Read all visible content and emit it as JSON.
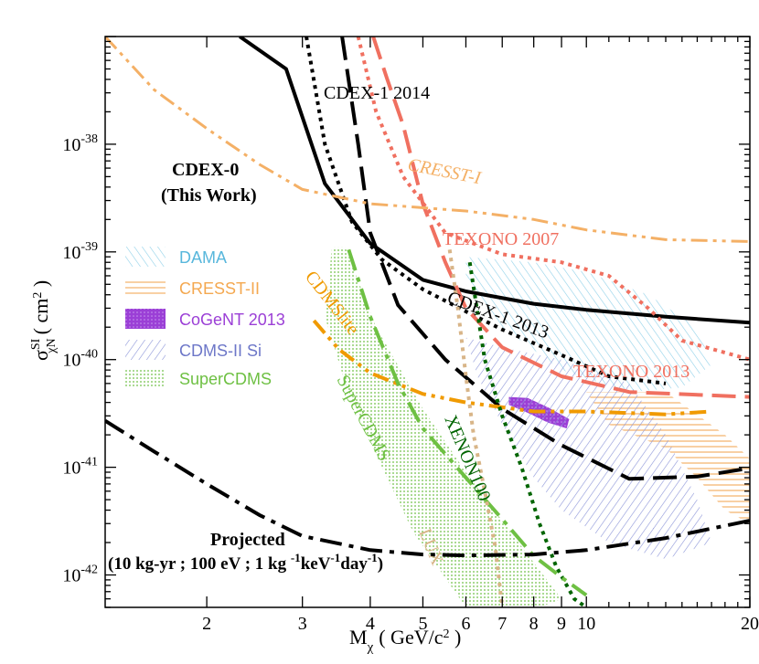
{
  "chart_data": {
    "type": "line",
    "xscale": "log",
    "yscale": "log",
    "xlim": [
      1.3,
      20
    ],
    "ylim": [
      5e-43,
      1e-37
    ],
    "xlabel": "M",
    "xlabel_sub": "χ",
    "xlabel_units": "( GeV/c",
    "xlabel_units_sup": "2",
    "xlabel_units_close": " )",
    "ylabel": "σ",
    "ylabel_sup": "SI",
    "ylabel_sub": "χN",
    "ylabel_units": "( cm",
    "ylabel_units_sup": "2",
    "ylabel_units_close": " )",
    "x_ticks": [
      {
        "value": 2,
        "label": "2"
      },
      {
        "value": 3,
        "label": "3"
      },
      {
        "value": 4,
        "label": "4"
      },
      {
        "value": 5,
        "label": "5"
      },
      {
        "value": 6,
        "label": "6"
      },
      {
        "value": 7,
        "label": "7"
      },
      {
        "value": 8,
        "label": "8"
      },
      {
        "value": 9,
        "label": "9"
      },
      {
        "value": 10,
        "label": "10"
      },
      {
        "value": 20,
        "label": "20"
      }
    ],
    "y_ticks": [
      {
        "value": 1e-38,
        "base": "10",
        "exp": "-38"
      },
      {
        "value": 1e-39,
        "base": "10",
        "exp": "-39"
      },
      {
        "value": 1e-40,
        "base": "10",
        "exp": "-40"
      },
      {
        "value": 1e-41,
        "base": "10",
        "exp": "-41"
      },
      {
        "value": 1e-42,
        "base": "10",
        "exp": "-42"
      }
    ],
    "series": [
      {
        "name": "CDEX-0 (This Work)",
        "color": "#000000",
        "style": "solid",
        "width": 4,
        "points": [
          [
            2.3,
            1e-37
          ],
          [
            2.8,
            5e-38
          ],
          [
            3.3,
            4.3e-39
          ],
          [
            4,
            1.2e-39
          ],
          [
            5,
            5.5e-40
          ],
          [
            6,
            4.3e-40
          ],
          [
            8,
            3.3e-40
          ],
          [
            10,
            2.9e-40
          ],
          [
            14,
            2.5e-40
          ],
          [
            20,
            2.2e-40
          ]
        ]
      },
      {
        "name": "CDEX-1 2014",
        "color": "#000000",
        "style": "longdash",
        "width": 4,
        "points": [
          [
            3.55,
            1e-37
          ],
          [
            3.8,
            1e-38
          ],
          [
            4,
            1.5e-39
          ],
          [
            4.5,
            3.2e-40
          ],
          [
            5.5,
            1e-40
          ],
          [
            7,
            3.5e-41
          ],
          [
            9,
            1.6e-41
          ],
          [
            12,
            7.8e-42
          ],
          [
            16,
            8.2e-42
          ],
          [
            20,
            9.8e-42
          ]
        ]
      },
      {
        "name": "CDEX-1 2013",
        "color": "#000000",
        "style": "dotted",
        "width": 4,
        "points": [
          [
            3.05,
            1e-37
          ],
          [
            3.3,
            1e-38
          ],
          [
            3.7,
            1.9e-39
          ],
          [
            4.2,
            8.5e-40
          ],
          [
            5,
            4.5e-40
          ],
          [
            6,
            2.8e-40
          ],
          [
            7,
            1.9e-40
          ],
          [
            9,
            1.1e-40
          ],
          [
            11,
            7e-41
          ],
          [
            14,
            6e-41
          ]
        ]
      },
      {
        "name": "TEXONO 2013",
        "color": "#f07060",
        "style": "longdash",
        "width": 4,
        "points": [
          [
            4.05,
            1e-37
          ],
          [
            4.3,
            4e-38
          ],
          [
            4.6,
            1.5e-38
          ],
          [
            5,
            2.8e-39
          ],
          [
            5.5,
            8e-40
          ],
          [
            6,
            3e-40
          ],
          [
            7,
            1.3e-40
          ],
          [
            9,
            7e-41
          ],
          [
            12,
            5e-41
          ],
          [
            20,
            4.5e-41
          ]
        ]
      },
      {
        "name": "TEXONO 2007",
        "color": "#f07060",
        "style": "dotted",
        "width": 4,
        "points": [
          [
            3.8,
            1e-37
          ],
          [
            4.1,
            2e-38
          ],
          [
            4.6,
            5e-39
          ],
          [
            5.5,
            1.5e-39
          ],
          [
            7,
            9.5e-40
          ],
          [
            9,
            8e-40
          ],
          [
            11,
            6e-40
          ],
          [
            13,
            3e-40
          ],
          [
            15,
            1.5e-40
          ],
          [
            20,
            1e-40
          ]
        ]
      },
      {
        "name": "CRESST-I",
        "color": "#f4b066",
        "style": "dashdotdot",
        "width": 3,
        "points": [
          [
            1.3,
            1e-37
          ],
          [
            1.6,
            3.2e-38
          ],
          [
            2,
            1.4e-38
          ],
          [
            2.5,
            6.5e-39
          ],
          [
            3,
            3.8e-39
          ],
          [
            4,
            2.8e-39
          ],
          [
            6,
            2.4e-39
          ],
          [
            8,
            2e-39
          ],
          [
            10,
            1.6e-39
          ],
          [
            14,
            1.3e-39
          ],
          [
            20,
            1.25e-39
          ]
        ]
      },
      {
        "name": "CDMSlite",
        "color": "#f09a00",
        "style": "dashdotdot",
        "width": 4,
        "points": [
          [
            3.15,
            2.3e-40
          ],
          [
            3.5,
            1.25e-40
          ],
          [
            4,
            7.5e-41
          ],
          [
            5,
            4.8e-41
          ],
          [
            6,
            4e-41
          ],
          [
            8,
            3.3e-41
          ],
          [
            10,
            3.3e-41
          ],
          [
            14,
            3.1e-41
          ],
          [
            17,
            3.3e-41
          ]
        ]
      },
      {
        "name": "XENON100",
        "color": "#006400",
        "style": "dotted",
        "width": 4,
        "points": [
          [
            6.1,
            8e-40
          ],
          [
            6.5,
            1e-40
          ],
          [
            7,
            3e-41
          ],
          [
            7.6,
            1e-41
          ],
          [
            8.2,
            3e-42
          ],
          [
            8.8,
            1.2e-42
          ],
          [
            9.5,
            6e-43
          ],
          [
            10,
            5e-43
          ]
        ]
      },
      {
        "name": "SuperCDMS",
        "color": "#6ec043",
        "style": "dashdot",
        "width": 4,
        "points": [
          [
            3.65,
            1.05e-39
          ],
          [
            4,
            2.5e-40
          ],
          [
            4.5,
            6e-41
          ],
          [
            5,
            2.3e-41
          ],
          [
            6,
            8e-42
          ],
          [
            7,
            3.3e-42
          ],
          [
            8,
            1.5e-42
          ],
          [
            9,
            9.5e-43
          ],
          [
            10,
            6.5e-43
          ]
        ]
      },
      {
        "name": "LUX",
        "color": "#d8b588",
        "style": "dotted",
        "width": 4,
        "points": [
          [
            5.6,
            1.05e-39
          ],
          [
            5.8,
            3e-40
          ],
          [
            6,
            7e-41
          ],
          [
            6.2,
            2e-41
          ],
          [
            6.5,
            6e-42
          ],
          [
            6.8,
            1.8e-42
          ],
          [
            7,
            5e-43
          ]
        ]
      },
      {
        "name": "Projected (10 kg-yr ; 100 eV ; 1 kg -1keV-1day-1)",
        "color": "#000000",
        "style": "dashdot",
        "width": 4,
        "points": [
          [
            1.3,
            2.7e-41
          ],
          [
            1.6,
            1.4e-41
          ],
          [
            2,
            7e-42
          ],
          [
            2.5,
            3.6e-42
          ],
          [
            3,
            2.3e-42
          ],
          [
            4,
            1.7e-42
          ],
          [
            5,
            1.55e-42
          ],
          [
            6,
            1.52e-42
          ],
          [
            8,
            1.55e-42
          ],
          [
            10,
            1.7e-42
          ],
          [
            14,
            2.2e-42
          ],
          [
            20,
            3.2e-42
          ]
        ]
      }
    ],
    "regions": [
      {
        "name": "DAMA",
        "color": "#8fd0e8",
        "hatch": "diag-left",
        "points": [
          [
            6,
            9e-40
          ],
          [
            8,
            8e-40
          ],
          [
            10,
            6.5e-40
          ],
          [
            13,
            4e-40
          ],
          [
            16,
            2e-40
          ],
          [
            17,
            9e-41
          ],
          [
            15,
            5.5e-41
          ],
          [
            12,
            5e-41
          ],
          [
            9,
            8e-41
          ],
          [
            7,
            2e-40
          ],
          [
            6,
            5e-40
          ]
        ]
      },
      {
        "name": "CRESST-II",
        "color": "#f4b066",
        "hatch": "horizontal",
        "points": [
          [
            10,
            5e-41
          ],
          [
            14,
            5e-41
          ],
          [
            18,
            2e-41
          ],
          [
            20,
            1.2e-41
          ],
          [
            20,
            3e-42
          ],
          [
            18,
            4e-42
          ],
          [
            16,
            8e-42
          ],
          [
            14,
            1.5e-41
          ],
          [
            11,
            2.5e-41
          ]
        ]
      },
      {
        "name": "CoGeNT 2013",
        "color": "#9b3fd6",
        "hatch": "solid",
        "points": [
          [
            7.2,
            4.5e-41
          ],
          [
            7.8,
            4.4e-41
          ],
          [
            8.5,
            3.6e-41
          ],
          [
            9.3,
            2.8e-41
          ],
          [
            9.2,
            2.3e-41
          ],
          [
            8.5,
            2.6e-41
          ],
          [
            7.8,
            3.2e-41
          ],
          [
            7.2,
            3.8e-41
          ]
        ]
      },
      {
        "name": "CDMS-II Si",
        "color": "#8c95d8",
        "hatch": "diag-right",
        "points": [
          [
            6,
            1.6e-40
          ],
          [
            7,
            1.3e-40
          ],
          [
            9,
            1e-40
          ],
          [
            12,
            6e-41
          ],
          [
            14,
            2e-41
          ],
          [
            16,
            5e-42
          ],
          [
            17,
            2e-42
          ],
          [
            14,
            1.4e-42
          ],
          [
            11,
            2e-42
          ],
          [
            9,
            4e-42
          ],
          [
            8,
            8e-42
          ],
          [
            7,
            2.5e-41
          ],
          [
            6.3,
            7e-41
          ]
        ]
      },
      {
        "name": "SuperCDMS",
        "color": "#6ec043",
        "hatch": "dots",
        "points": [
          [
            3.4,
            1.1e-39
          ],
          [
            3.6,
            1.1e-39
          ],
          [
            4.1,
            2e-40
          ],
          [
            5,
            3.5e-41
          ],
          [
            6,
            9e-42
          ],
          [
            7.5,
            2e-42
          ],
          [
            9,
            6e-43
          ],
          [
            8.2,
            5e-43
          ],
          [
            6,
            5e-43
          ],
          [
            4.8,
            2.5e-42
          ],
          [
            4.1,
            1.3e-41
          ],
          [
            3.6,
            6e-41
          ],
          [
            3.3,
            2.5e-40
          ]
        ]
      }
    ],
    "annotations": {
      "cdex0_line1": "CDEX-0",
      "cdex0_line2": "(This Work)",
      "cdex1_2014": "CDEX-1 2014",
      "cresst_i": "CRESST-I",
      "texono_2007": "TEXONO 2007",
      "cdex1_2013": "CDEX-1 2013",
      "texono_2013": "TEXONO 2013",
      "cdmslite": "CDMSlite",
      "supercdms": "SuperCDMS",
      "lux": "LUX",
      "xenon100": "XENON100",
      "projected_line1": "Projected",
      "projected_line2_a": "(10 kg-yr ; 100 eV ; 1 kg ",
      "projected_sup1": "-1",
      "projected_line2_b": "keV",
      "projected_sup2": "-1",
      "projected_line2_c": "day",
      "projected_sup3": "-1",
      "projected_line2_d": ")"
    },
    "legend": [
      {
        "label": "DAMA",
        "color": "#8fd0e8",
        "hatch": "diag-left"
      },
      {
        "label": "CRESST-II",
        "color": "#f4b066",
        "hatch": "horizontal"
      },
      {
        "label": "CoGeNT 2013",
        "color": "#9b3fd6",
        "hatch": "solid"
      },
      {
        "label": "CDMS-II Si",
        "color": "#8c95d8",
        "hatch": "diag-right"
      },
      {
        "label": "SuperCDMS",
        "color": "#6ec043",
        "hatch": "dots"
      }
    ],
    "legend_position": "middle-left"
  }
}
